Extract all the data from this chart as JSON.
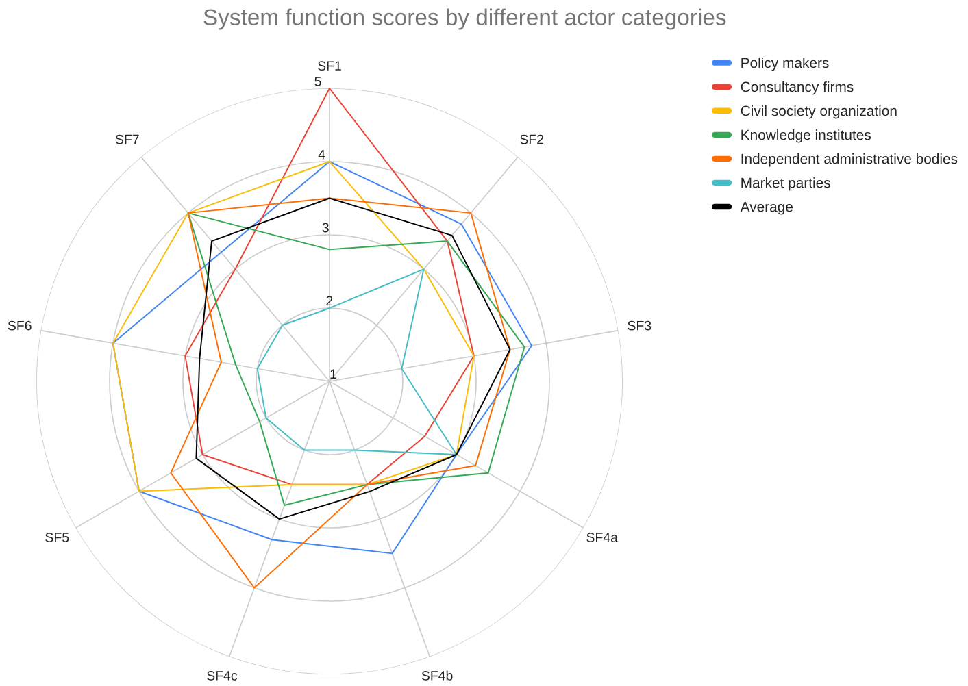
{
  "chart_data": {
    "type": "radar",
    "title": "System function scores by different actor categories",
    "categories": [
      "SF1",
      "SF2",
      "SF3",
      "SF4a",
      "SF4b",
      "SF4c",
      "SF5",
      "SF6",
      "SF7"
    ],
    "series": [
      {
        "name": "Policy makers",
        "color": "#4285f4",
        "values": [
          4,
          3.8,
          3.8,
          3.0,
          3.5,
          3.3,
          4,
          4,
          3.3
        ]
      },
      {
        "name": "Consultancy firms",
        "color": "#ea4335",
        "values": [
          5,
          3.5,
          3,
          2.5,
          2.5,
          2.5,
          3,
          3,
          3
        ]
      },
      {
        "name": "Civil society organization",
        "color": "#fbbc04",
        "values": [
          4,
          3,
          3,
          3,
          2.5,
          2.5,
          4,
          4,
          4
        ]
      },
      {
        "name": "Knowledge institutes",
        "color": "#34a853",
        "values": [
          2.8,
          3.5,
          3.7,
          3.5,
          2.5,
          2.8,
          2.1,
          2.3,
          4
        ]
      },
      {
        "name": "Independent administrative bodies",
        "color": "#ff6d01",
        "values": [
          3.5,
          4,
          3.5,
          3.3,
          2.5,
          4,
          3.5,
          2.5,
          4
        ]
      },
      {
        "name": "Market parties",
        "color": "#46bdc6",
        "values": [
          2,
          3,
          2,
          3,
          2,
          2,
          2,
          2,
          2
        ]
      },
      {
        "name": "Average",
        "color": "#000000",
        "values": [
          3.5,
          3.6,
          3.5,
          3.0,
          2.6,
          3.0,
          3.1,
          2.8,
          3.5
        ]
      }
    ],
    "ylim": [
      1,
      5
    ],
    "yticks": [
      1,
      2,
      3,
      4,
      5
    ],
    "grid": true,
    "legend": "top right",
    "marker": "none",
    "line_style": "solid"
  }
}
